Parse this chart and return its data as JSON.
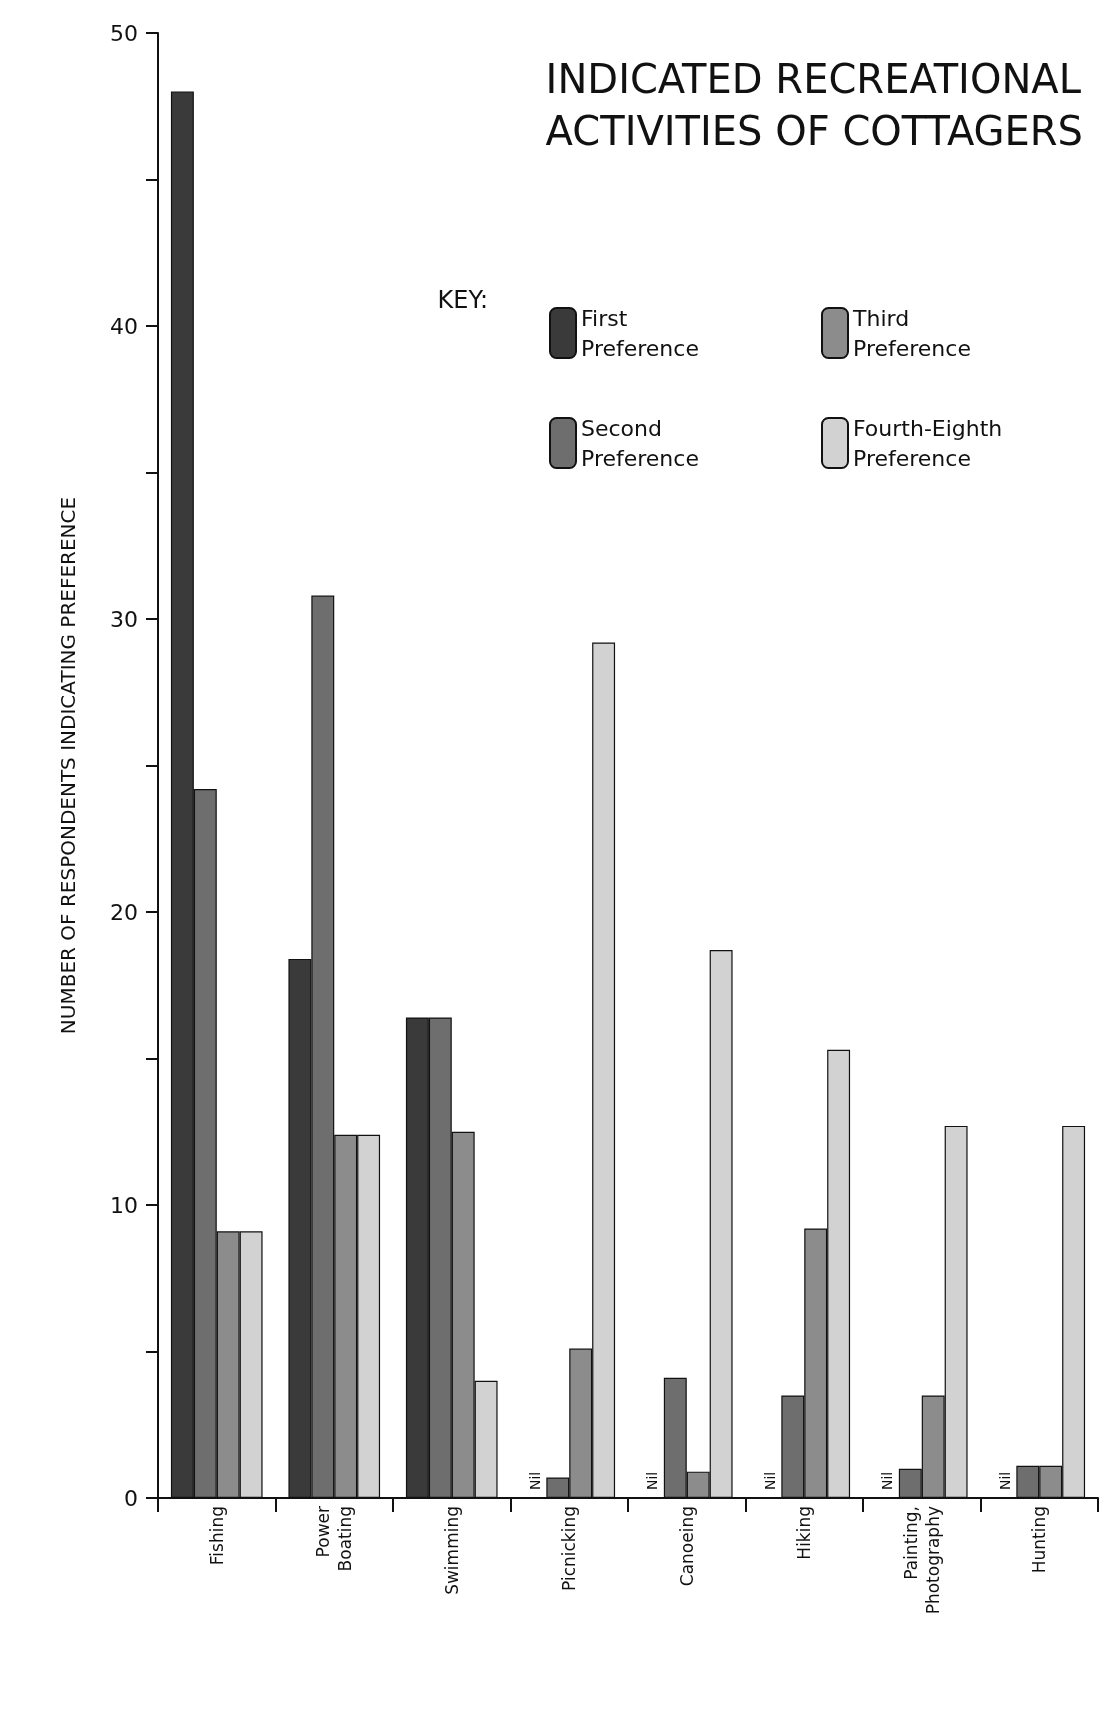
{
  "chart_data": {
    "type": "bar",
    "title": "INDICATED RECREATIONAL\nACTIVITIES OF COTTAGERS",
    "ylabel": "NUMBER OF RESPONDENTS INDICATING PREFERENCE",
    "legend_title": "KEY:",
    "legend": "top right",
    "grid": false,
    "annotations": [
      {
        "text": "Nil",
        "x": "Picnicking",
        "y": 0
      },
      {
        "text": "Nil",
        "x": "Canoeing",
        "y": 0
      },
      {
        "text": "Nil",
        "x": "Hiking",
        "y": 0
      },
      {
        "text": "Nil",
        "x": "Painting, Photography",
        "y": 0
      },
      {
        "text": "Nil",
        "x": "Hunting",
        "y": 0
      }
    ],
    "categories": [
      "Fishing",
      "Power Boating",
      "Swimming",
      "Picnicking",
      "Canoeing",
      "Hiking",
      "Painting, Photography",
      "Hunting"
    ],
    "ylim": [
      0,
      50
    ],
    "yticks": [
      0,
      {
        "value": 5,
        "label": null
      },
      10,
      {
        "value": 15,
        "label": null
      },
      20,
      {
        "value": 25,
        "label": null
      },
      30,
      {
        "value": 35,
        "label": null
      },
      40,
      {
        "value": 45,
        "label": null
      },
      50
    ],
    "series": [
      {
        "name": "First Preference",
        "color": "#3a3a3a",
        "values": [
          48,
          18.4,
          16.4,
          0,
          0,
          0,
          0,
          0
        ]
      },
      {
        "name": "Second Preference",
        "color": "#6e6e6e",
        "values": [
          24.2,
          30.8,
          16.4,
          0.7,
          4.1,
          3.5,
          1,
          1.1
        ]
      },
      {
        "name": "Third Preference",
        "color": "#8c8c8c",
        "values": [
          9.1,
          12.4,
          12.5,
          5.1,
          0.9,
          9.2,
          3.5,
          1.1
        ]
      },
      {
        "name": "Fourth-Eighth Preference",
        "color": "#d2d2d2",
        "values": [
          9.1,
          12.4,
          4,
          29.2,
          18.7,
          15.3,
          12.7,
          12.7
        ]
      }
    ]
  }
}
